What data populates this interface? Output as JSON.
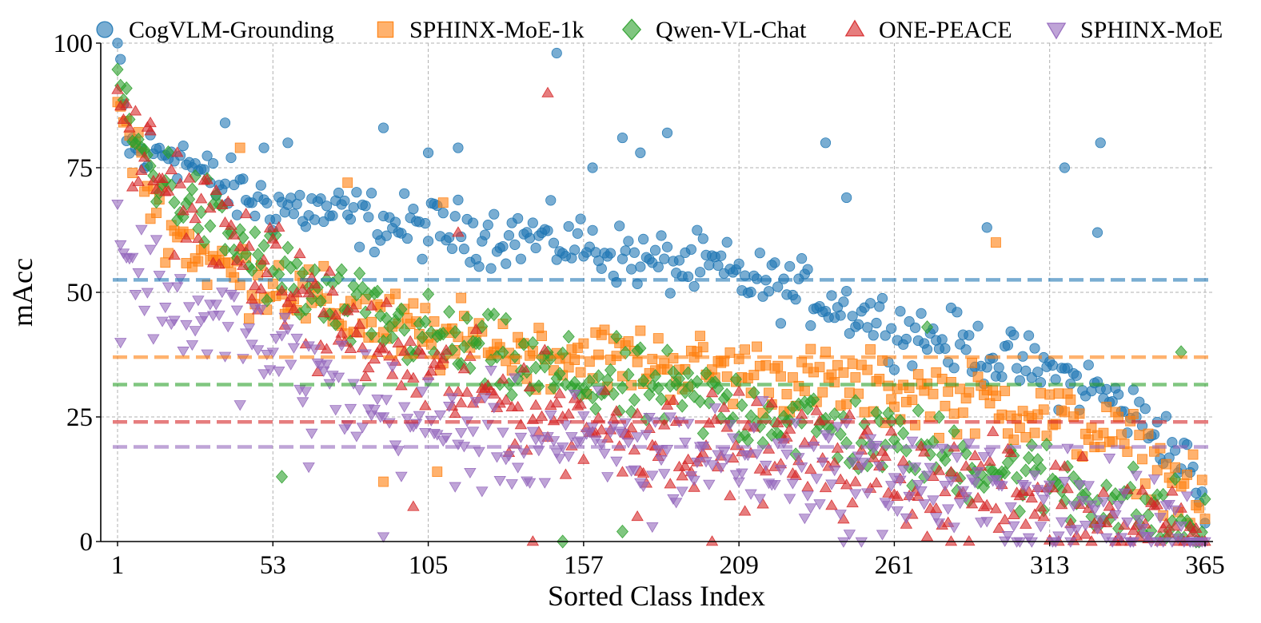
{
  "chart_data": {
    "type": "scatter",
    "title": "",
    "xlabel": "Sorted Class Index",
    "ylabel": "mAcc",
    "xlim": [
      1,
      365
    ],
    "ylim": [
      0,
      100
    ],
    "x_ticks": [
      1,
      53,
      105,
      157,
      209,
      261,
      313,
      365
    ],
    "x_tick_labels": [
      "1",
      "53",
      "105",
      "157",
      "209",
      "261",
      "313",
      "365"
    ],
    "y_ticks": [
      0,
      25,
      50,
      75,
      100
    ],
    "y_tick_labels": [
      "0",
      "25",
      "50",
      "75",
      "100"
    ],
    "grid": true,
    "legend_position": "top",
    "series": [
      {
        "name": "CogVLM-Grounding",
        "color": "#1f77b4",
        "marker": "circle",
        "mean": 52.5,
        "anchors": [
          [
            1,
            100
          ],
          [
            2,
            96
          ],
          [
            4,
            80
          ],
          [
            10,
            77
          ],
          [
            20,
            79
          ],
          [
            30,
            73
          ],
          [
            40,
            70
          ],
          [
            50,
            68
          ],
          [
            60,
            67
          ],
          [
            80,
            65
          ],
          [
            100,
            63
          ],
          [
            120,
            62
          ],
          [
            140,
            61
          ],
          [
            160,
            59
          ],
          [
            180,
            56
          ],
          [
            200,
            55
          ],
          [
            209,
            53
          ],
          [
            230,
            50
          ],
          [
            250,
            46
          ],
          [
            261,
            43
          ],
          [
            280,
            40
          ],
          [
            300,
            36
          ],
          [
            313,
            34
          ],
          [
            330,
            30
          ],
          [
            350,
            22
          ],
          [
            360,
            14
          ],
          [
            365,
            6
          ]
        ],
        "outliers": [
          [
            37,
            84
          ],
          [
            50,
            79
          ],
          [
            58,
            80
          ],
          [
            90,
            83
          ],
          [
            105,
            78
          ],
          [
            115,
            79
          ],
          [
            148,
            98
          ],
          [
            160,
            75
          ],
          [
            170,
            81
          ],
          [
            176,
            78
          ],
          [
            185,
            82
          ],
          [
            238,
            80
          ],
          [
            245,
            69
          ],
          [
            292,
            63
          ],
          [
            318,
            75
          ],
          [
            330,
            80
          ],
          [
            329,
            62
          ]
        ]
      },
      {
        "name": "SPHINX-MoE-1k",
        "color": "#ff7f0e",
        "marker": "square",
        "mean": 37,
        "anchors": [
          [
            1,
            89
          ],
          [
            2,
            87
          ],
          [
            4,
            82
          ],
          [
            8,
            76
          ],
          [
            12,
            70
          ],
          [
            20,
            62
          ],
          [
            30,
            57
          ],
          [
            40,
            54
          ],
          [
            53,
            52
          ],
          [
            70,
            47
          ],
          [
            90,
            44
          ],
          [
            105,
            41
          ],
          [
            120,
            40
          ],
          [
            140,
            38
          ],
          [
            157,
            37
          ],
          [
            180,
            36
          ],
          [
            209,
            34
          ],
          [
            230,
            32
          ],
          [
            250,
            31
          ],
          [
            261,
            30
          ],
          [
            280,
            29
          ],
          [
            300,
            27
          ],
          [
            313,
            25
          ],
          [
            330,
            22
          ],
          [
            345,
            17
          ],
          [
            355,
            12
          ],
          [
            365,
            6
          ]
        ],
        "outliers": [
          [
            42,
            79
          ],
          [
            78,
            72
          ],
          [
            110,
            68
          ],
          [
            295,
            60
          ],
          [
            90,
            12
          ],
          [
            108,
            14
          ]
        ]
      },
      {
        "name": "Qwen-VL-Chat",
        "color": "#2ca02c",
        "marker": "diamond",
        "mean": 31.5,
        "anchors": [
          [
            1,
            95
          ],
          [
            2,
            91
          ],
          [
            3,
            88
          ],
          [
            5,
            83
          ],
          [
            10,
            77
          ],
          [
            20,
            70
          ],
          [
            30,
            66
          ],
          [
            40,
            60
          ],
          [
            53,
            55
          ],
          [
            70,
            48
          ],
          [
            90,
            44
          ],
          [
            105,
            41
          ],
          [
            120,
            38
          ],
          [
            140,
            34
          ],
          [
            157,
            32
          ],
          [
            180,
            30
          ],
          [
            209,
            27
          ],
          [
            230,
            24
          ],
          [
            250,
            21
          ],
          [
            261,
            19
          ],
          [
            280,
            17
          ],
          [
            300,
            14
          ],
          [
            313,
            12
          ],
          [
            330,
            9
          ],
          [
            345,
            6
          ],
          [
            355,
            4
          ],
          [
            365,
            1
          ]
        ],
        "outliers": [
          [
            56,
            13
          ],
          [
            150,
            0
          ],
          [
            170,
            2
          ],
          [
            272,
            43
          ],
          [
            357,
            38
          ]
        ]
      },
      {
        "name": "ONE-PEACE",
        "color": "#d62728",
        "marker": "triangle-up",
        "mean": 24,
        "anchors": [
          [
            1,
            90
          ],
          [
            2,
            87
          ],
          [
            4,
            83
          ],
          [
            8,
            78
          ],
          [
            14,
            74
          ],
          [
            20,
            70
          ],
          [
            30,
            66
          ],
          [
            40,
            60
          ],
          [
            53,
            53
          ],
          [
            70,
            45
          ],
          [
            90,
            38
          ],
          [
            105,
            33
          ],
          [
            120,
            30
          ],
          [
            140,
            27
          ],
          [
            157,
            24
          ],
          [
            180,
            21
          ],
          [
            209,
            19
          ],
          [
            230,
            17
          ],
          [
            250,
            15
          ],
          [
            261,
            13
          ],
          [
            280,
            11
          ],
          [
            300,
            9
          ],
          [
            313,
            8
          ],
          [
            330,
            6
          ],
          [
            345,
            4
          ],
          [
            365,
            1
          ]
        ],
        "outliers": [
          [
            12,
            84
          ],
          [
            145,
            90
          ],
          [
            115,
            62
          ],
          [
            140,
            0
          ],
          [
            200,
            0
          ],
          [
            280,
            0
          ],
          [
            100,
            7
          ],
          [
            175,
            5
          ]
        ]
      },
      {
        "name": "SPHINX-MoE",
        "color": "#9467bd",
        "marker": "triangle-down",
        "mean": 19,
        "anchors": [
          [
            1,
            67
          ],
          [
            2,
            60
          ],
          [
            4,
            56
          ],
          [
            10,
            53
          ],
          [
            20,
            48
          ],
          [
            30,
            44
          ],
          [
            40,
            42
          ],
          [
            53,
            38
          ],
          [
            70,
            32
          ],
          [
            90,
            26
          ],
          [
            105,
            23
          ],
          [
            120,
            21
          ],
          [
            140,
            20
          ],
          [
            157,
            19
          ],
          [
            180,
            18
          ],
          [
            209,
            17
          ],
          [
            230,
            15
          ],
          [
            250,
            13
          ],
          [
            261,
            12
          ],
          [
            280,
            10
          ],
          [
            300,
            8
          ],
          [
            313,
            7
          ],
          [
            330,
            5
          ],
          [
            345,
            3
          ],
          [
            365,
            0
          ]
        ],
        "outliers": [
          [
            2,
            40
          ],
          [
            65,
            15
          ],
          [
            90,
            1
          ],
          [
            180,
            3
          ],
          [
            250,
            0
          ],
          [
            320,
            0
          ],
          [
            340,
            0
          ],
          [
            360,
            0
          ]
        ]
      }
    ]
  }
}
